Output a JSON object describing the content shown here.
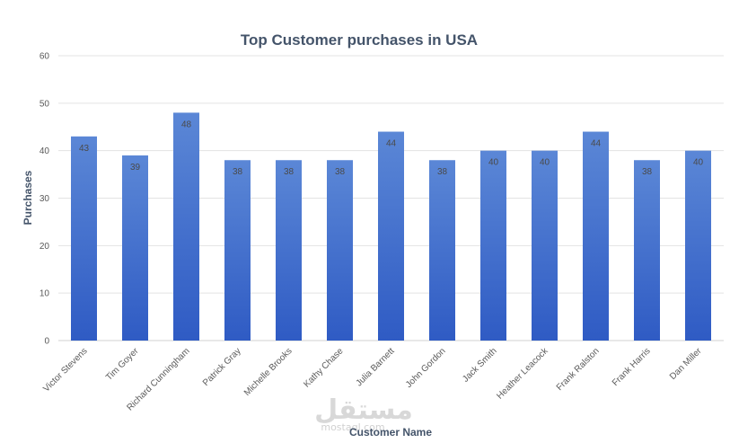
{
  "chart_data": {
    "type": "bar",
    "title": "Top Customer purchases in USA",
    "xlabel": "Customer Name",
    "ylabel": "Purchases",
    "ylim": [
      0,
      60
    ],
    "yticks": [
      0,
      10,
      20,
      30,
      40,
      50,
      60
    ],
    "grid": true,
    "legend": "none",
    "categories": [
      "Victor Stevens",
      "Tim Goyer",
      "Richard Cunningham",
      "Patrick Gray",
      "Michelle Brooks",
      "Kathy Chase",
      "Julia Barnett",
      "John Gordon",
      "Jack Smith",
      "Heather Leacock",
      "Frank Ralston",
      "Frank Harris",
      "Dan Miller"
    ],
    "values": [
      43,
      39,
      48,
      38,
      38,
      38,
      44,
      38,
      40,
      40,
      44,
      38,
      40
    ],
    "bar_color_top": "#5b87d6",
    "bar_color_bottom": "#2f5bc4"
  },
  "watermark": {
    "arabic": "مستقل",
    "latin": "mostaql.com"
  }
}
